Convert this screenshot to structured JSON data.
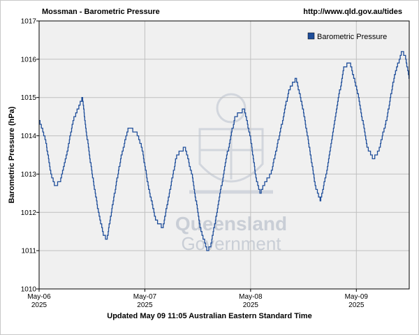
{
  "header": {
    "title": "Mossman - Barometric Pressure",
    "url": "http://www.qld.gov.au/tides"
  },
  "footer": {
    "updated": "Updated May 09 11:05 Australian Eastern Standard Time"
  },
  "watermark": {
    "line1": "Queensland",
    "line2": "Government"
  },
  "chart_data": {
    "type": "line",
    "title": "Mossman - Barometric Pressure",
    "ylabel": "Barometric Pressure (hPa)",
    "xlabel": "",
    "ylim": [
      1010,
      1017
    ],
    "xlim": [
      0,
      3.5
    ],
    "y_ticks": [
      1010,
      1011,
      1012,
      1013,
      1014,
      1015,
      1016,
      1017
    ],
    "x_ticks": [
      {
        "value": 0,
        "label1": "May-06",
        "label2": "2025"
      },
      {
        "value": 1,
        "label1": "May-07",
        "label2": "2025"
      },
      {
        "value": 2,
        "label1": "May-08",
        "label2": "2025"
      },
      {
        "value": 3,
        "label1": "May-09",
        "label2": "2025"
      }
    ],
    "grid": true,
    "legend_position": "top-right",
    "series": [
      {
        "name": "Barometric Pressure",
        "color": "#1f4e9a",
        "points": [
          [
            0.0,
            1014.4
          ],
          [
            0.06,
            1013.9
          ],
          [
            0.11,
            1013.0
          ],
          [
            0.15,
            1012.7
          ],
          [
            0.2,
            1012.8
          ],
          [
            0.26,
            1013.5
          ],
          [
            0.32,
            1014.4
          ],
          [
            0.38,
            1014.8
          ],
          [
            0.41,
            1015.0
          ],
          [
            0.44,
            1014.2
          ],
          [
            0.5,
            1013.0
          ],
          [
            0.56,
            1012.0
          ],
          [
            0.61,
            1011.4
          ],
          [
            0.64,
            1011.3
          ],
          [
            0.7,
            1012.3
          ],
          [
            0.77,
            1013.4
          ],
          [
            0.84,
            1014.2
          ],
          [
            0.92,
            1014.1
          ],
          [
            0.97,
            1013.7
          ],
          [
            1.03,
            1012.7
          ],
          [
            1.1,
            1011.8
          ],
          [
            1.17,
            1011.6
          ],
          [
            1.23,
            1012.5
          ],
          [
            1.3,
            1013.5
          ],
          [
            1.38,
            1013.7
          ],
          [
            1.45,
            1012.9
          ],
          [
            1.52,
            1011.6
          ],
          [
            1.59,
            1011.0
          ],
          [
            1.62,
            1011.1
          ],
          [
            1.68,
            1012.0
          ],
          [
            1.76,
            1013.3
          ],
          [
            1.85,
            1014.5
          ],
          [
            1.94,
            1014.7
          ],
          [
            2.0,
            1013.9
          ],
          [
            2.05,
            1012.9
          ],
          [
            2.09,
            1012.5
          ],
          [
            2.14,
            1012.8
          ],
          [
            2.19,
            1013.0
          ],
          [
            2.27,
            1014.0
          ],
          [
            2.36,
            1015.2
          ],
          [
            2.43,
            1015.5
          ],
          [
            2.5,
            1014.6
          ],
          [
            2.56,
            1013.6
          ],
          [
            2.61,
            1012.7
          ],
          [
            2.66,
            1012.3
          ],
          [
            2.72,
            1013.1
          ],
          [
            2.8,
            1014.5
          ],
          [
            2.88,
            1015.8
          ],
          [
            2.94,
            1015.9
          ],
          [
            3.02,
            1015.0
          ],
          [
            3.1,
            1013.7
          ],
          [
            3.16,
            1013.4
          ],
          [
            3.21,
            1013.6
          ],
          [
            3.29,
            1014.5
          ],
          [
            3.36,
            1015.6
          ],
          [
            3.43,
            1016.2
          ],
          [
            3.46,
            1016.1
          ],
          [
            3.5,
            1015.5
          ]
        ]
      }
    ]
  }
}
